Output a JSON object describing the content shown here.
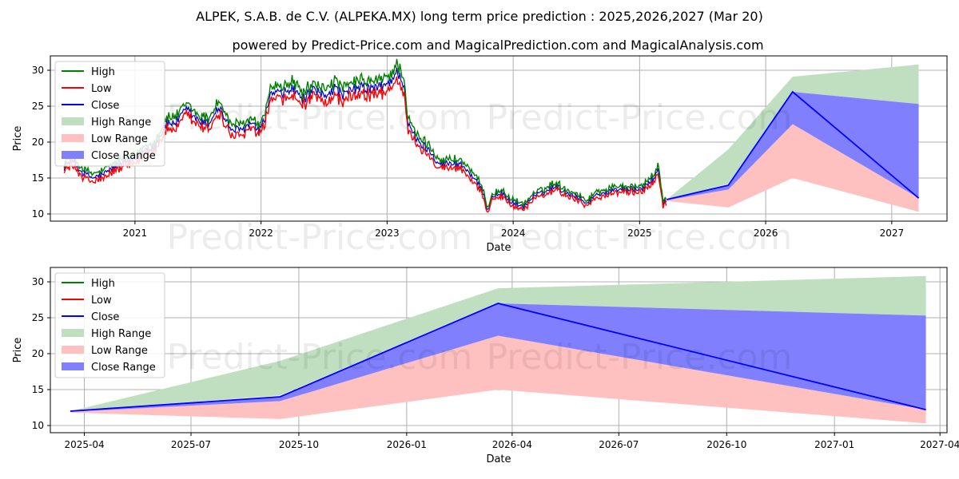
{
  "page": {
    "title": "ALPEK, S.A.B. de C.V. (ALPEKA.MX) long term price prediction : 2025,2026,2027 (Mar 20)",
    "subtitle": "powered by Predict-Price.com and MagicalPrediction.com and MagicalAnalysis.com",
    "watermark": "Predict-Price.com"
  },
  "colors": {
    "high": "#008000",
    "low": "#ff0000",
    "close": "#0000ff",
    "high_range": "#c0dfc0",
    "low_range": "#ffc0c0",
    "close_range": "#8080ff",
    "history_close": "#0000cc"
  },
  "chart_data": [
    {
      "type": "line",
      "title": "",
      "xlabel": "Date",
      "ylabel": "Price",
      "x_type": "date",
      "xlim": [
        "2020-05-01",
        "2027-06-10"
      ],
      "ylim": [
        9,
        32
      ],
      "xticks": [
        "2021",
        "2022",
        "2023",
        "2024",
        "2025",
        "2026",
        "2027"
      ],
      "yticks": [
        10,
        15,
        20,
        25,
        30
      ],
      "grid": true,
      "legend": {
        "placement": "top-left",
        "entries": [
          "High",
          "Low",
          "Close",
          "High Range",
          "Low Range",
          "Close Range"
        ]
      },
      "history": {
        "anchors": [
          [
            "2020-06-10",
            16.5
          ],
          [
            "2020-07-01",
            17.6
          ],
          [
            "2020-08-01",
            15.8
          ],
          [
            "2020-09-01",
            15.0
          ],
          [
            "2020-10-01",
            15.5
          ],
          [
            "2020-11-01",
            16.5
          ],
          [
            "2020-12-01",
            17.3
          ],
          [
            "2021-01-01",
            17.5
          ],
          [
            "2021-02-01",
            19.0
          ],
          [
            "2021-03-01",
            19.5
          ],
          [
            "2021-04-01",
            22.5
          ],
          [
            "2021-05-01",
            22.8
          ],
          [
            "2021-06-01",
            24.5
          ],
          [
            "2021-07-01",
            23.0
          ],
          [
            "2021-08-01",
            22.5
          ],
          [
            "2021-09-01",
            25.0
          ],
          [
            "2021-10-01",
            22.0
          ],
          [
            "2021-11-01",
            21.5
          ],
          [
            "2021-12-01",
            22.5
          ],
          [
            "2022-01-01",
            21.5
          ],
          [
            "2022-02-01",
            27.0
          ],
          [
            "2022-03-01",
            26.5
          ],
          [
            "2022-04-01",
            27.5
          ],
          [
            "2022-05-01",
            26.0
          ],
          [
            "2022-06-01",
            27.0
          ],
          [
            "2022-07-01",
            26.5
          ],
          [
            "2022-08-01",
            27.5
          ],
          [
            "2022-09-01",
            26.5
          ],
          [
            "2022-10-01",
            27.5
          ],
          [
            "2022-11-01",
            27.5
          ],
          [
            "2022-12-01",
            27.5
          ],
          [
            "2023-01-01",
            28.0
          ],
          [
            "2023-02-01",
            29.8
          ],
          [
            "2023-02-20",
            28.0
          ],
          [
            "2023-03-01",
            22.5
          ],
          [
            "2023-04-01",
            20.0
          ],
          [
            "2023-05-01",
            19.0
          ],
          [
            "2023-06-01",
            17.0
          ],
          [
            "2023-07-01",
            17.0
          ],
          [
            "2023-08-01",
            17.0
          ],
          [
            "2023-09-01",
            15.5
          ],
          [
            "2023-10-01",
            13.5
          ],
          [
            "2023-10-20",
            10.5
          ],
          [
            "2023-11-01",
            12.5
          ],
          [
            "2023-12-01",
            12.8
          ],
          [
            "2024-01-01",
            11.5
          ],
          [
            "2024-02-01",
            11.0
          ],
          [
            "2024-03-01",
            12.5
          ],
          [
            "2024-04-01",
            13.0
          ],
          [
            "2024-05-01",
            14.0
          ],
          [
            "2024-06-01",
            13.0
          ],
          [
            "2024-07-01",
            12.5
          ],
          [
            "2024-08-01",
            11.5
          ],
          [
            "2024-09-01",
            12.8
          ],
          [
            "2024-10-01",
            13.0
          ],
          [
            "2024-11-01",
            13.5
          ],
          [
            "2024-12-01",
            13.5
          ],
          [
            "2025-01-01",
            13.3
          ],
          [
            "2025-02-01",
            14.5
          ],
          [
            "2025-02-25",
            16.0
          ],
          [
            "2025-03-10",
            11.5
          ],
          [
            "2025-03-20",
            12.0
          ]
        ]
      },
      "forecast": {
        "x": [
          "2025-03-20",
          "2025-09-15",
          "2026-03-20",
          "2027-03-20"
        ],
        "high_range": {
          "upper": [
            12.0,
            19.0,
            29.1,
            30.8
          ],
          "lower": [
            12.0,
            14.2,
            27.0,
            25.3
          ]
        },
        "close_range": {
          "upper": [
            12.0,
            14.0,
            27.0,
            25.3
          ],
          "lower": [
            11.9,
            13.4,
            22.5,
            12.2
          ]
        },
        "low_range": {
          "upper": [
            11.9,
            13.4,
            22.5,
            12.2
          ],
          "lower": [
            11.8,
            10.9,
            15.0,
            10.3
          ]
        },
        "close": [
          12.0,
          14.0,
          27.0,
          12.2
        ]
      }
    },
    {
      "type": "line",
      "title": "",
      "xlabel": "Date",
      "ylabel": "Price",
      "x_type": "date",
      "xlim": [
        "2025-03-03",
        "2027-04-07"
      ],
      "ylim": [
        9,
        32
      ],
      "xticks": [
        "2025-04",
        "2025-07",
        "2025-10",
        "2026-01",
        "2026-04",
        "2026-07",
        "2026-10",
        "2027-01",
        "2027-04"
      ],
      "yticks": [
        10,
        15,
        20,
        25,
        30
      ],
      "grid": true,
      "legend": {
        "placement": "top-left",
        "entries": [
          "High",
          "Low",
          "Close",
          "High Range",
          "Low Range",
          "Close Range"
        ]
      },
      "forecast": {
        "x": [
          "2025-03-20",
          "2025-09-15",
          "2026-03-20",
          "2027-03-20"
        ],
        "high_range": {
          "upper": [
            12.0,
            19.0,
            29.1,
            30.8
          ],
          "lower": [
            12.0,
            14.2,
            27.0,
            25.3
          ]
        },
        "close_range": {
          "upper": [
            12.0,
            14.0,
            27.0,
            25.3
          ],
          "lower": [
            11.9,
            13.4,
            22.5,
            12.2
          ]
        },
        "low_range": {
          "upper": [
            11.9,
            13.4,
            22.5,
            12.2
          ],
          "lower": [
            11.8,
            10.9,
            15.0,
            10.3
          ]
        },
        "close": [
          12.0,
          14.0,
          27.0,
          12.2
        ]
      }
    }
  ]
}
